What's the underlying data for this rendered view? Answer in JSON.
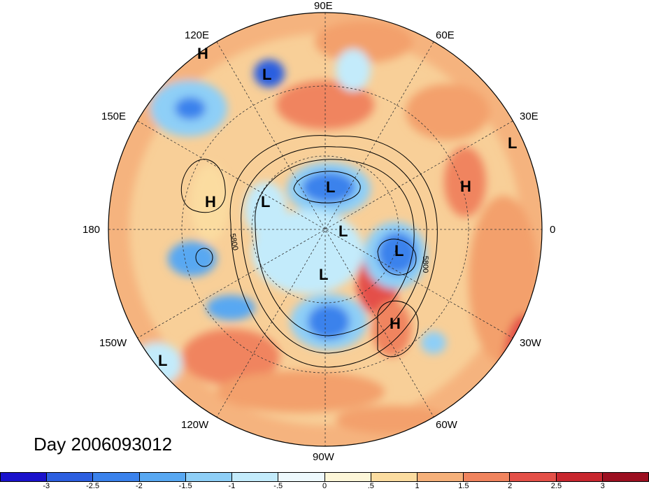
{
  "map": {
    "title": "Day 2006093012",
    "contour_label": "5800",
    "longitude_labels": {
      "lon_90e": "90E",
      "lon_120e": "120E",
      "lon_60e": "60E",
      "lon_150e": "150E",
      "lon_30e": "30E",
      "lon_180": "180",
      "lon_0": "0",
      "lon_150w": "150W",
      "lon_30w": "30W",
      "lon_120w": "120W",
      "lon_60w": "60W",
      "lon_90w": "90W"
    },
    "pressure_centers": [
      {
        "type": "H"
      },
      {
        "type": "L"
      },
      {
        "type": "L"
      },
      {
        "type": "L"
      },
      {
        "type": "H"
      },
      {
        "type": "H"
      },
      {
        "type": "L"
      },
      {
        "type": "L"
      },
      {
        "type": "L"
      },
      {
        "type": "L"
      },
      {
        "type": "H"
      },
      {
        "type": "L"
      }
    ],
    "colorbar": {
      "colors": [
        "#1a12cc",
        "#2c5fe0",
        "#3a82ec",
        "#58a8f2",
        "#8ecff7",
        "#c3ebfb",
        "#eef9fd",
        "#fdf6d8",
        "#fbdca0",
        "#f5b07a",
        "#f0845e",
        "#e45048",
        "#c8262e",
        "#9c0f20"
      ],
      "ticks": [
        "-3",
        "-2.5",
        "-2",
        "-1.5",
        "-1",
        "-.5",
        "0",
        ".5",
        "1",
        "1.5",
        "2",
        "2.5",
        "3"
      ]
    }
  }
}
